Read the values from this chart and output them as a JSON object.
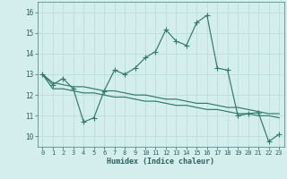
{
  "xlabel": "Humidex (Indice chaleur)",
  "bg_color": "#d4eeee",
  "grid_color": "#c0e0e0",
  "line_color": "#2e7b6e",
  "xlim": [
    -0.5,
    23.5
  ],
  "ylim": [
    9.5,
    16.5
  ],
  "xticks": [
    0,
    1,
    2,
    3,
    4,
    5,
    6,
    7,
    8,
    9,
    10,
    11,
    12,
    13,
    14,
    15,
    16,
    17,
    18,
    19,
    20,
    21,
    22,
    23
  ],
  "yticks": [
    10,
    11,
    12,
    13,
    14,
    15,
    16
  ],
  "main_y": [
    13.0,
    12.5,
    12.8,
    12.3,
    10.7,
    10.9,
    12.2,
    13.2,
    13.0,
    13.3,
    13.8,
    14.1,
    15.15,
    14.6,
    14.4,
    15.5,
    15.85,
    13.3,
    13.2,
    11.0,
    11.1,
    11.15,
    9.75,
    10.1
  ],
  "line2_y": [
    13.0,
    12.6,
    12.5,
    12.4,
    12.4,
    12.3,
    12.2,
    12.2,
    12.1,
    12.0,
    12.0,
    11.9,
    11.8,
    11.8,
    11.7,
    11.6,
    11.6,
    11.5,
    11.4,
    11.4,
    11.3,
    11.2,
    11.1,
    11.1
  ],
  "line3_y": [
    13.0,
    12.3,
    12.3,
    12.2,
    12.1,
    12.1,
    12.0,
    11.9,
    11.9,
    11.8,
    11.7,
    11.7,
    11.6,
    11.5,
    11.5,
    11.4,
    11.3,
    11.3,
    11.2,
    11.1,
    11.1,
    11.0,
    11.0,
    10.9
  ]
}
